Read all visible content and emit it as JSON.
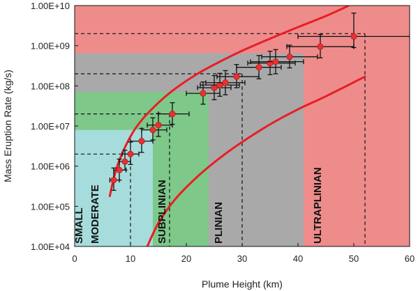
{
  "chart_data": {
    "type": "scatter",
    "title": "",
    "xlabel": "Plume Height (km)",
    "ylabel": "Mass Eruption Rate (kg/s)",
    "xlim": [
      0,
      60
    ],
    "ylim": [
      10000,
      10000000000
    ],
    "yscale": "log",
    "grid": false,
    "x_ticks": [
      0,
      10,
      20,
      30,
      40,
      50,
      60
    ],
    "x_tick_labels": [
      "0",
      "10",
      "20",
      "30",
      "40",
      "50",
      "60"
    ],
    "y_ticks": [
      10000,
      100000,
      1000000,
      10000000,
      100000000,
      1000000000,
      10000000000
    ],
    "y_tick_labels": [
      "1.00E+04",
      "1.00E+05",
      "1.00E+06",
      "1.00E+07",
      "1.00E+08",
      "1.00E+09",
      "1.00E+10"
    ],
    "colors": {
      "small_moderate": "#a6dcdc",
      "subplinian": "#7ec88a",
      "plinian": "#a9a9a9",
      "ultraplinian": "#ee8c8c",
      "points": "#e63232",
      "curves": "#e81e25"
    },
    "regions": [
      {
        "label": "SMALL MODERATE",
        "lines": [
          "SMALL",
          "MODERATE"
        ],
        "x_max": 14,
        "y_max": 8000000
      },
      {
        "label": "SUBPLINIAN",
        "lines": [
          "SUBPLINIAN"
        ],
        "x_max": 24,
        "y_max": 70000000
      },
      {
        "label": "PLINIAN",
        "lines": [
          "PLINIAN"
        ],
        "x_max": 41,
        "y_max": 650000000
      },
      {
        "label": "ULTRAPLINIAN",
        "lines": [
          "ULTRAPLINIAN"
        ],
        "x_max": 60,
        "y_max": 10000000000
      }
    ],
    "threshold_lines": [
      {
        "x": 10,
        "y": 2000000
      },
      {
        "x": 17,
        "y": 20000000
      },
      {
        "x": 30,
        "y": 200000000
      },
      {
        "x": 52,
        "y": 2000000000
      }
    ],
    "points": [
      {
        "x": 7,
        "y": 450000,
        "xerr": [
          0.7,
          1.0
        ],
        "yerr": [
          200000,
          450000
        ]
      },
      {
        "x": 8,
        "y": 800000,
        "xerr": [
          1.0,
          1.2
        ],
        "yerr": [
          350000,
          700000
        ]
      },
      {
        "x": 9,
        "y": 1300000,
        "xerr": [
          1.0,
          1.0
        ],
        "yerr": [
          500000,
          1200000
        ]
      },
      {
        "x": 10,
        "y": 2000000,
        "xerr": [
          1.5,
          1.5
        ],
        "yerr": [
          900000,
          2000000
        ]
      },
      {
        "x": 12,
        "y": 4200000,
        "xerr": [
          2.0,
          2.0
        ],
        "yerr": [
          2000000,
          4500000
        ]
      },
      {
        "x": 14,
        "y": 8000000,
        "xerr": [
          2.0,
          2.5
        ],
        "yerr": [
          3500000,
          8000000
        ]
      },
      {
        "x": 15,
        "y": 10500000,
        "xerr": [
          2.0,
          2.5
        ],
        "yerr": [
          5000000,
          10000000
        ]
      },
      {
        "x": 17.5,
        "y": 20000000,
        "xerr": [
          2.5,
          3.0
        ],
        "yerr": [
          9000000,
          18000000
        ]
      },
      {
        "x": 23,
        "y": 65000000,
        "xerr": [
          3.0,
          3.0
        ],
        "yerr": [
          30000000,
          60000000
        ]
      },
      {
        "x": 25,
        "y": 90000000,
        "xerr": [
          3.0,
          3.0
        ],
        "yerr": [
          45000000,
          90000000
        ]
      },
      {
        "x": 26,
        "y": 105000000,
        "xerr": [
          3.5,
          3.5
        ],
        "yerr": [
          50000000,
          100000000
        ]
      },
      {
        "x": 27,
        "y": 120000000,
        "xerr": [
          3.5,
          3.5
        ],
        "yerr": [
          60000000,
          120000000
        ]
      },
      {
        "x": 29,
        "y": 170000000,
        "xerr": [
          3.5,
          4.0
        ],
        "yerr": [
          80000000,
          170000000
        ]
      },
      {
        "x": 33,
        "y": 290000000,
        "xerr": [
          4.0,
          4.0
        ],
        "yerr": [
          140000000,
          280000000
        ]
      },
      {
        "x": 35,
        "y": 370000000,
        "xerr": [
          4.0,
          4.5
        ],
        "yerr": [
          180000000,
          360000000
        ]
      },
      {
        "x": 36,
        "y": 400000000,
        "xerr": [
          4.5,
          5.0
        ],
        "yerr": [
          200000000,
          400000000
        ]
      },
      {
        "x": 38.5,
        "y": 530000000,
        "xerr": [
          5.0,
          5.0
        ],
        "yerr": [
          250000000,
          500000000
        ]
      },
      {
        "x": 44,
        "y": 950000000,
        "xerr": [
          6.0,
          6.0
        ],
        "yerr": [
          450000000,
          950000000
        ]
      },
      {
        "x": 50,
        "y": 1700000000,
        "xerr": [
          10.0,
          10.0
        ],
        "yerr": [
          800000000,
          4800000000
        ]
      }
    ],
    "curves": [
      {
        "name": "upper envelope",
        "x": [
          6.3,
          7,
          8,
          10,
          12,
          15,
          18,
          22,
          26,
          30,
          35,
          40,
          45,
          49
        ],
        "y": [
          180000,
          500000,
          1400000,
          5500000,
          14000000,
          38000000,
          85000000,
          200000000,
          400000000,
          750000000,
          1500000000,
          2900000000,
          5500000000,
          9800000000
        ]
      },
      {
        "name": "lower envelope",
        "x": [
          13,
          15,
          18,
          22,
          26,
          30,
          35,
          40,
          45,
          52
        ],
        "y": [
          10000,
          38000,
          150000,
          550000,
          1600000,
          4000000,
          11000000,
          26000000,
          55000000,
          170000000
        ]
      }
    ]
  }
}
